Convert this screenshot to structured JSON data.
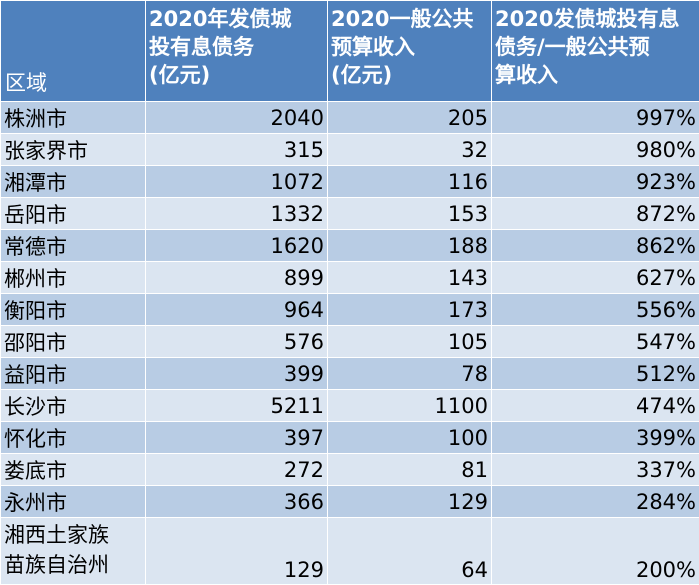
{
  "table": {
    "headers": {
      "region": "区域",
      "debt": [
        "2020年发债城",
        "投有息债务",
        "(亿元)"
      ],
      "revenue": [
        "2020一般公共",
        "预算收入",
        "(亿元)"
      ],
      "ratio": [
        "2020发债城投有息",
        "债务/一般公共预",
        "算收入"
      ]
    },
    "rows": [
      {
        "region": "株洲市",
        "debt": "2040",
        "revenue": "205",
        "ratio": "997%"
      },
      {
        "region": "张家界市",
        "debt": "315",
        "revenue": "32",
        "ratio": "980%"
      },
      {
        "region": "湘潭市",
        "debt": "1072",
        "revenue": "116",
        "ratio": "923%"
      },
      {
        "region": "岳阳市",
        "debt": "1332",
        "revenue": "153",
        "ratio": "872%"
      },
      {
        "region": "常德市",
        "debt": "1620",
        "revenue": "188",
        "ratio": "862%"
      },
      {
        "region": "郴州市",
        "debt": "899",
        "revenue": "143",
        "ratio": "627%"
      },
      {
        "region": "衡阳市",
        "debt": "964",
        "revenue": "173",
        "ratio": "556%"
      },
      {
        "region": "邵阳市",
        "debt": "576",
        "revenue": "105",
        "ratio": "547%"
      },
      {
        "region": "益阳市",
        "debt": "399",
        "revenue": "78",
        "ratio": "512%"
      },
      {
        "region": "长沙市",
        "debt": "5211",
        "revenue": "1100",
        "ratio": "474%"
      },
      {
        "region": "怀化市",
        "debt": "397",
        "revenue": "100",
        "ratio": "399%"
      },
      {
        "region": "娄底市",
        "debt": "272",
        "revenue": "81",
        "ratio": "337%"
      },
      {
        "region": "永州市",
        "debt": "366",
        "revenue": "129",
        "ratio": "284%"
      },
      {
        "region_lines": [
          "湘西土家族",
          "苗族自治州"
        ],
        "debt": "129",
        "revenue": "64",
        "ratio": "200%"
      }
    ]
  }
}
